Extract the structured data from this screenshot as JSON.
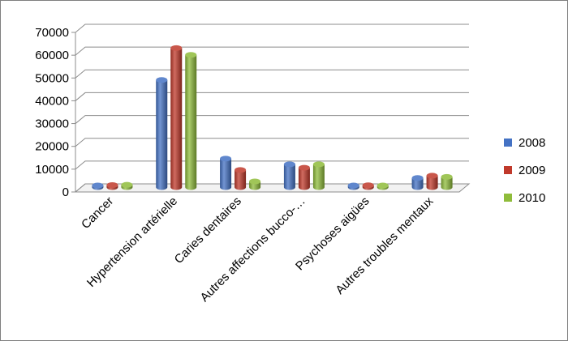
{
  "chart_data": {
    "type": "bar",
    "title": "",
    "xlabel": "",
    "ylabel": "",
    "ylim": [
      0,
      70000
    ],
    "yticks": [
      0,
      10000,
      20000,
      30000,
      40000,
      50000,
      60000,
      70000
    ],
    "categories": [
      "Cancer",
      "Hypertension artérielle",
      "Caries dentaires",
      "Autres affections bucco-…",
      "Psychoses aigües",
      "Autres troubles mentaux"
    ],
    "series": [
      {
        "name": "2008",
        "color": "#4472c4",
        "values": [
          700,
          47000,
          12500,
          10000,
          500,
          4000
        ]
      },
      {
        "name": "2009",
        "color": "#c0392b",
        "values": [
          900,
          61000,
          7500,
          8500,
          800,
          5000
        ]
      },
      {
        "name": "2010",
        "color": "#8fbc3b",
        "values": [
          1000,
          58000,
          2500,
          10000,
          700,
          4500
        ]
      }
    ],
    "legend_position": "right",
    "grid": true,
    "style": "3d-cylinder"
  }
}
